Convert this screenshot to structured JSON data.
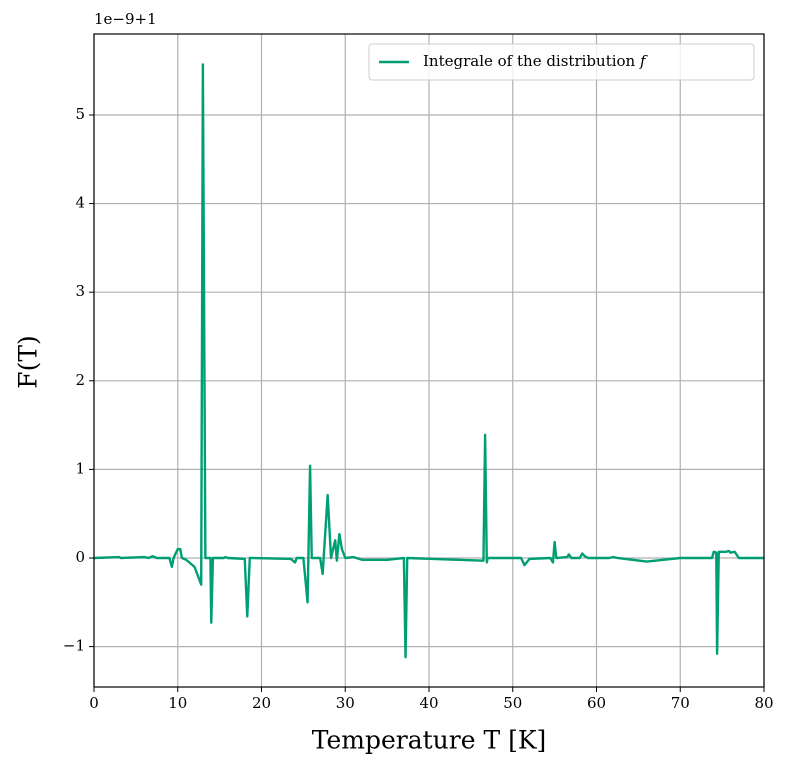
{
  "chart_data": {
    "type": "line",
    "offset_label": "1e−9+1",
    "x_label": "Temperature T [K]",
    "y_label": "F(T)",
    "x": [
      0,
      3,
      3.2,
      6,
      6.5,
      7,
      7.5,
      9,
      9.3,
      9.5,
      10,
      10.3,
      10.5,
      11,
      12,
      12.8,
      13,
      13.3,
      13.9,
      14,
      14.2,
      15.5,
      15.7,
      16,
      18,
      18.3,
      18.6,
      19,
      23.5,
      24,
      24.2,
      25,
      25.5,
      25.8,
      26,
      27,
      27.3,
      27.9,
      28.3,
      28.8,
      29,
      29.3,
      29.6,
      30,
      31,
      32,
      35,
      37,
      37.2,
      37.4,
      46.5,
      46.7,
      46.9,
      47,
      51,
      51.4,
      52,
      54.5,
      54.8,
      55,
      55.2,
      56.5,
      56.7,
      57,
      58,
      58.3,
      58.6,
      59,
      61.5,
      62,
      62.5,
      66,
      70,
      73.8,
      74,
      74.3,
      74.4,
      74.6,
      75.5,
      75.8,
      76,
      76.5,
      77,
      80
    ],
    "series": [
      {
        "name": "Integrale of the distribution 𝑓",
        "color": "#009e73",
        "values": [
          0,
          0.01,
          0,
          0.01,
          0,
          0.02,
          0,
          0,
          -0.1,
          0,
          0.1,
          0.1,
          0,
          -0.02,
          -0.1,
          -0.3,
          5.57,
          0,
          0,
          -0.73,
          0,
          0,
          0.01,
          0,
          -0.01,
          -0.66,
          0,
          0,
          -0.01,
          -0.05,
          0,
          0,
          -0.5,
          1.04,
          0,
          0,
          -0.18,
          0.71,
          0,
          0.2,
          -0.03,
          0.27,
          0.1,
          0,
          0.01,
          -0.02,
          -0.02,
          0,
          -1.12,
          0,
          -0.03,
          1.39,
          -0.05,
          0,
          0,
          -0.08,
          -0.01,
          0,
          -0.05,
          0.18,
          0,
          0.01,
          0.04,
          0,
          0,
          0.05,
          0.02,
          0,
          0,
          0.01,
          0,
          -0.04,
          0,
          0,
          0.07,
          0.06,
          -1.08,
          0.07,
          0.07,
          0.08,
          0.06,
          0.07,
          0,
          0
        ]
      }
    ],
    "xlim": [
      0,
      80
    ],
    "xticks": [
      0,
      10,
      20,
      30,
      40,
      50,
      60,
      70,
      80
    ],
    "ylim": [
      -1.456,
      5.914
    ],
    "yticks": [
      {
        "value": -1,
        "label": "−1"
      },
      0,
      1,
      2,
      3,
      4,
      5
    ],
    "grid": true,
    "legend": "upper right"
  }
}
